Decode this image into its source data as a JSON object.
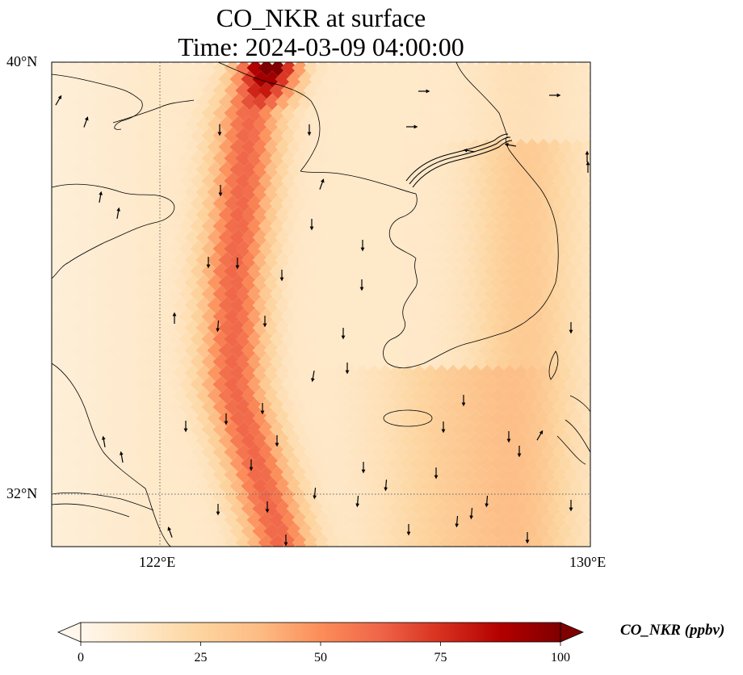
{
  "title": {
    "line1": "CO_NKR at surface",
    "line2": "Time: 2024-03-09 04:00:00"
  },
  "map": {
    "variable": "CO_NKR",
    "level": "surface",
    "projection": "lat/lon",
    "lon_range": [
      119.5,
      130
    ],
    "lat_range": [
      30.8,
      40
    ],
    "lat_ticks": [
      "40°N",
      "32°N"
    ],
    "lon_ticks": [
      "122°E",
      "130°E"
    ],
    "gridlines": {
      "lon": 122,
      "lat": 32,
      "style": "dotted"
    },
    "features": [
      "coastlines",
      "borders",
      "wind-vectors"
    ],
    "plume": {
      "description": "high CO band from Bohai/North Korea coast southward across Yellow Sea",
      "max_value": 100
    }
  },
  "colorbar": {
    "label": "CO_NKR (ppbv)",
    "cmap": "OrRd",
    "min": 0,
    "max": 100,
    "extend": "both",
    "ticks": [
      "0",
      "25",
      "50",
      "75",
      "100"
    ],
    "colors": [
      "#fff7ec",
      "#fee8c8",
      "#fdd49e",
      "#fdbb84",
      "#fc8d59",
      "#ef6548",
      "#d7301f",
      "#b30000",
      "#7f0000"
    ]
  }
}
